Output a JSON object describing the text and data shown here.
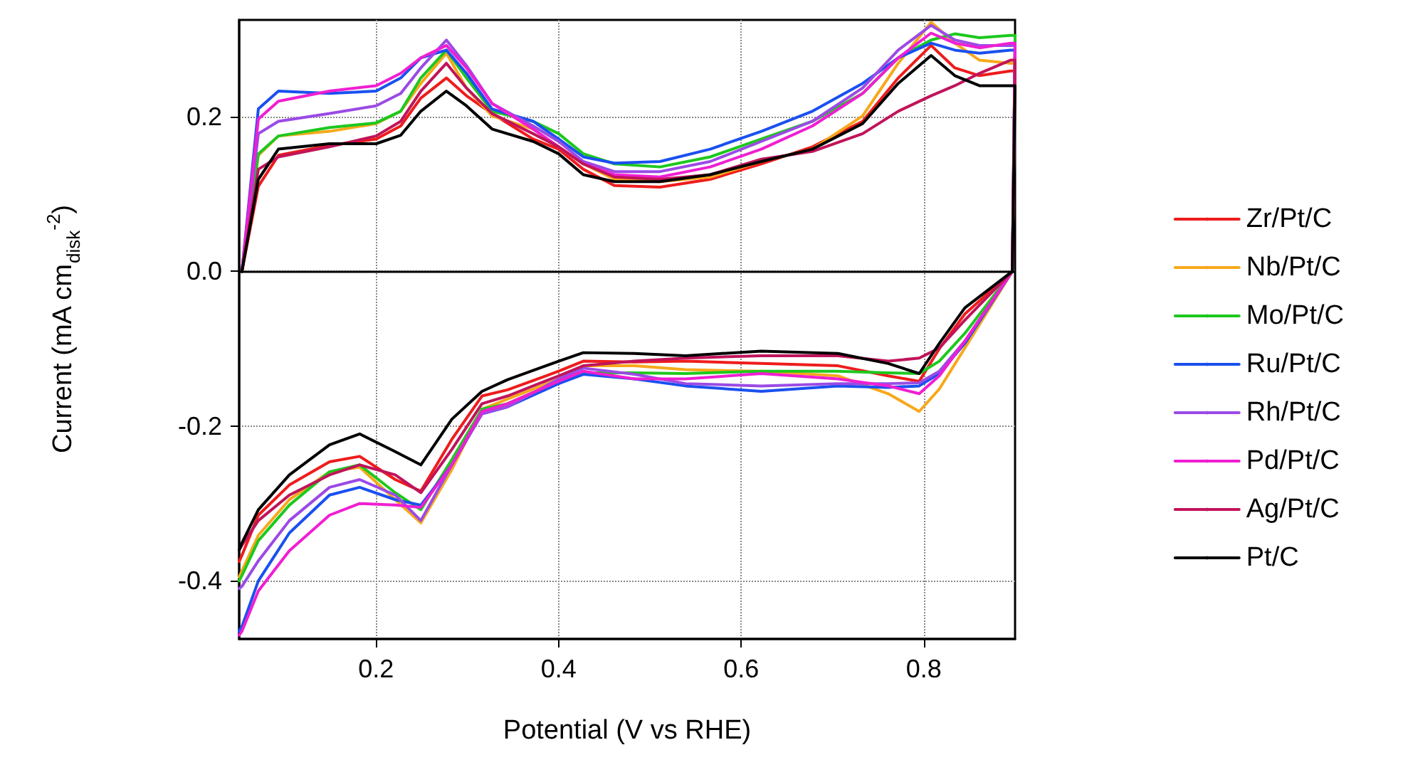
{
  "chart_data": {
    "type": "line",
    "xlabel": "Potential (V vs RHE)",
    "ylabel": "Current (mA cm$_{disk}$$^{-2}$)",
    "xlim": [
      0.05,
      0.9
    ],
    "ylim": [
      -0.475,
      0.325
    ],
    "xticks": [
      0.2,
      0.4,
      0.6,
      0.8
    ],
    "yticks": [
      -0.4,
      -0.2,
      {
        "value": 0,
        "label": "0.0"
      },
      0.2
    ],
    "grid": true,
    "legend": "right",
    "marker": "none",
    "line_style": "solid",
    "ref_lines": [
      {
        "axis": "y",
        "value": 0,
        "color": "#000000"
      }
    ],
    "x": [
      0.053,
      0.071,
      0.093,
      0.149,
      0.2,
      0.227,
      0.249,
      0.277,
      0.299,
      0.327,
      0.372,
      0.4,
      0.427,
      0.461,
      0.511,
      0.566,
      0.622,
      0.678,
      0.733,
      0.772,
      0.808,
      0.834,
      0.861,
      0.895,
      0.9,
      0.897,
      0.845,
      0.817,
      0.795,
      0.761,
      0.706,
      0.622,
      0.539,
      0.483,
      0.427,
      0.4,
      0.344,
      0.316,
      0.283,
      0.249,
      0.221,
      0.182,
      0.149,
      0.105,
      0.071,
      0.053,
      0.05
    ],
    "series": [
      {
        "name": "Zr/Pt/C",
        "color": "#ee1c1c",
        "values": [
          0,
          0.11,
          0.15,
          0.163,
          0.171,
          0.188,
          0.224,
          0.25,
          0.227,
          0.204,
          0.171,
          0.158,
          0.132,
          0.111,
          0.109,
          0.119,
          0.139,
          0.161,
          0.194,
          0.25,
          0.292,
          0.263,
          0.253,
          0.259,
          0.259,
          0,
          -0.055,
          -0.1,
          -0.142,
          -0.135,
          -0.122,
          -0.119,
          -0.116,
          -0.117,
          -0.116,
          -0.129,
          -0.153,
          -0.161,
          -0.217,
          -0.284,
          -0.269,
          -0.239,
          -0.246,
          -0.276,
          -0.315,
          -0.367,
          -0.375
        ]
      },
      {
        "name": "Nb/Pt/C",
        "color": "#f7a81b",
        "values": [
          0,
          0.15,
          0.175,
          0.181,
          0.191,
          0.207,
          0.243,
          0.282,
          0.237,
          0.201,
          0.184,
          0.161,
          0.139,
          0.119,
          0.116,
          0.122,
          0.142,
          0.158,
          0.201,
          0.269,
          0.322,
          0.295,
          0.273,
          0.269,
          0.269,
          0,
          -0.099,
          -0.152,
          -0.181,
          -0.158,
          -0.135,
          -0.129,
          -0.127,
          -0.122,
          -0.122,
          -0.139,
          -0.165,
          -0.178,
          -0.256,
          -0.325,
          -0.295,
          -0.253,
          -0.259,
          -0.295,
          -0.341,
          -0.387,
          -0.395
        ]
      },
      {
        "name": "Mo/Pt/C",
        "color": "#1ec81e",
        "values": [
          0,
          0.152,
          0.175,
          0.186,
          0.192,
          0.207,
          0.25,
          0.286,
          0.25,
          0.207,
          0.194,
          0.178,
          0.152,
          0.139,
          0.135,
          0.148,
          0.171,
          0.194,
          0.23,
          0.276,
          0.299,
          0.307,
          0.302,
          0.305,
          0.305,
          0,
          -0.08,
          -0.116,
          -0.132,
          -0.131,
          -0.129,
          -0.129,
          -0.132,
          -0.131,
          -0.131,
          -0.142,
          -0.171,
          -0.178,
          -0.243,
          -0.308,
          -0.286,
          -0.25,
          -0.259,
          -0.302,
          -0.348,
          -0.393,
          -0.4
        ]
      },
      {
        "name": "Ru/Pt/C",
        "color": "#1a50f0",
        "values": [
          0,
          0.21,
          0.233,
          0.23,
          0.233,
          0.25,
          0.276,
          0.286,
          0.256,
          0.21,
          0.194,
          0.171,
          0.148,
          0.14,
          0.142,
          0.158,
          0.181,
          0.207,
          0.243,
          0.276,
          0.295,
          0.286,
          0.282,
          0.286,
          0.286,
          0,
          -0.093,
          -0.132,
          -0.148,
          -0.15,
          -0.148,
          -0.155,
          -0.148,
          -0.139,
          -0.133,
          -0.145,
          -0.175,
          -0.184,
          -0.25,
          -0.302,
          -0.295,
          -0.279,
          -0.289,
          -0.338,
          -0.4,
          -0.459,
          -0.465
        ]
      },
      {
        "name": "Rh/Pt/C",
        "color": "#9b4ae6",
        "values": [
          0,
          0.178,
          0.194,
          0.204,
          0.214,
          0.23,
          0.263,
          0.299,
          0.266,
          0.217,
          0.188,
          0.168,
          0.142,
          0.129,
          0.129,
          0.142,
          0.168,
          0.194,
          0.237,
          0.286,
          0.318,
          0.299,
          0.292,
          0.292,
          0.292,
          0,
          -0.09,
          -0.129,
          -0.144,
          -0.145,
          -0.145,
          -0.148,
          -0.145,
          -0.133,
          -0.125,
          -0.139,
          -0.175,
          -0.184,
          -0.25,
          -0.322,
          -0.289,
          -0.269,
          -0.279,
          -0.322,
          -0.374,
          -0.407,
          -0.41
        ]
      },
      {
        "name": "Pd/Pt/C",
        "color": "#f01ed2",
        "values": [
          0,
          0.197,
          0.22,
          0.233,
          0.24,
          0.256,
          0.276,
          0.292,
          0.263,
          0.217,
          0.184,
          0.161,
          0.139,
          0.125,
          0.122,
          0.135,
          0.158,
          0.188,
          0.23,
          0.276,
          0.308,
          0.295,
          0.289,
          0.295,
          0.295,
          0,
          -0.09,
          -0.135,
          -0.158,
          -0.148,
          -0.139,
          -0.132,
          -0.139,
          -0.139,
          -0.129,
          -0.142,
          -0.171,
          -0.181,
          -0.25,
          -0.305,
          -0.302,
          -0.3,
          -0.315,
          -0.361,
          -0.413,
          -0.465,
          -0.47
        ]
      },
      {
        "name": "Ag/Pt/C",
        "color": "#c0145a",
        "values": [
          0,
          0.132,
          0.148,
          0.161,
          0.175,
          0.194,
          0.233,
          0.269,
          0.237,
          0.204,
          0.178,
          0.161,
          0.139,
          0.122,
          0.119,
          0.125,
          0.145,
          0.155,
          0.178,
          0.207,
          0.227,
          0.24,
          0.256,
          0.273,
          0.273,
          0,
          -0.063,
          -0.099,
          -0.112,
          -0.116,
          -0.109,
          -0.109,
          -0.112,
          -0.116,
          -0.122,
          -0.135,
          -0.161,
          -0.171,
          -0.23,
          -0.286,
          -0.263,
          -0.25,
          -0.263,
          -0.289,
          -0.322,
          -0.354,
          -0.36
        ]
      },
      {
        "name": "Pt/C",
        "color": "#000000",
        "values": [
          0,
          0.119,
          0.158,
          0.165,
          0.165,
          0.176,
          0.207,
          0.233,
          0.214,
          0.184,
          0.168,
          0.152,
          0.125,
          0.116,
          0.116,
          0.125,
          0.142,
          0.158,
          0.191,
          0.243,
          0.279,
          0.253,
          0.24,
          0.24,
          0.24,
          0,
          -0.047,
          -0.093,
          -0.132,
          -0.119,
          -0.106,
          -0.103,
          -0.109,
          -0.106,
          -0.105,
          -0.116,
          -0.14,
          -0.155,
          -0.191,
          -0.25,
          -0.233,
          -0.21,
          -0.224,
          -0.263,
          -0.308,
          -0.351,
          -0.36
        ]
      }
    ]
  }
}
